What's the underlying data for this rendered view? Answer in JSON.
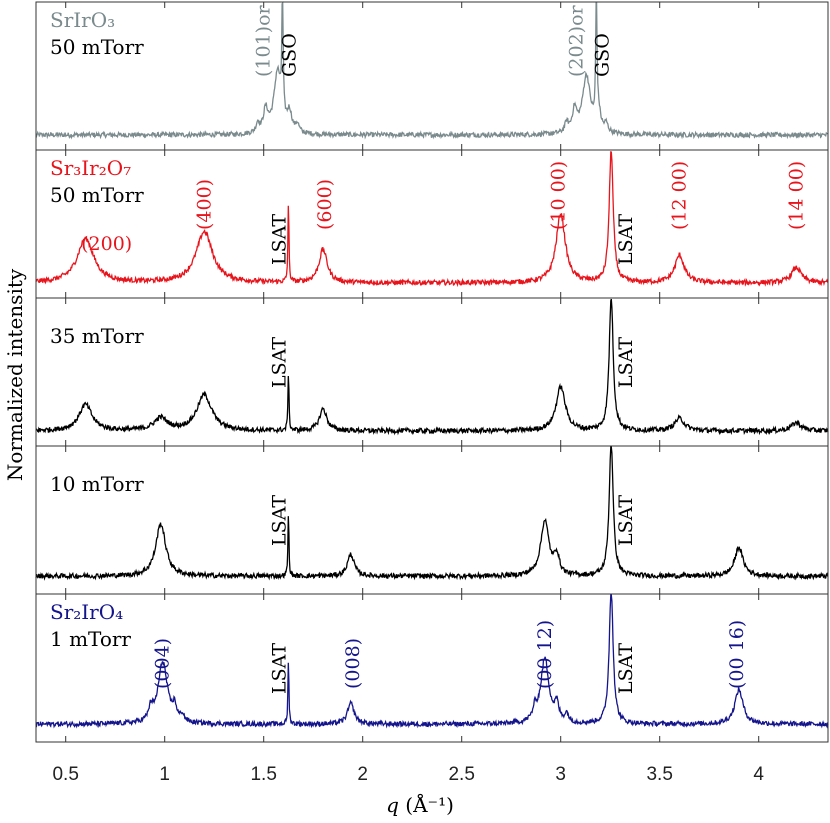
{
  "chart_data": {
    "type": "line",
    "title": "",
    "xlabel": "q (Å⁻¹)",
    "xlabel_var": "q",
    "xlabel_unit": "(Å⁻¹)",
    "ylabel": "Normalized intensity",
    "xlim": [
      0.35,
      4.35
    ],
    "x_ticks": [
      "0.5",
      "1",
      "1.5",
      "2",
      "2.5",
      "3",
      "3.5",
      "4"
    ],
    "x_tick_values": [
      0.5,
      1,
      1.5,
      2,
      2.5,
      3,
      3.5,
      4
    ],
    "panels": [
      {
        "material": "SrIrO₃",
        "pressure": "50 mTorr",
        "color": "#7a8a8d",
        "baseline": 0.08,
        "peaks": [
          {
            "x": 1.57,
            "h": 0.45,
            "w": 0.022
          },
          {
            "x": 1.51,
            "h": 0.16,
            "w": 0.014
          },
          {
            "x": 1.63,
            "h": 0.14,
            "w": 0.014
          },
          {
            "x": 1.47,
            "h": 0.07,
            "w": 0.01
          },
          {
            "x": 1.67,
            "h": 0.06,
            "w": 0.01
          },
          {
            "x": 1.595,
            "h": 0.98,
            "w": 0.0035
          },
          {
            "x": 3.13,
            "h": 0.42,
            "w": 0.024
          },
          {
            "x": 3.07,
            "h": 0.16,
            "w": 0.014
          },
          {
            "x": 3.19,
            "h": 0.14,
            "w": 0.014
          },
          {
            "x": 3.03,
            "h": 0.07,
            "w": 0.01
          },
          {
            "x": 3.23,
            "h": 0.06,
            "w": 0.01
          },
          {
            "x": 3.18,
            "h": 0.98,
            "w": 0.0035
          }
        ],
        "annotations": [
          {
            "text": "(101)",
            "suffix": "or",
            "x": 1.5,
            "color": "#7a8a8d"
          },
          {
            "text": "GSO",
            "x": 1.63,
            "color": "#000000"
          },
          {
            "text": "(202)",
            "suffix": "or",
            "x": 3.08,
            "color": "#7a8a8d"
          },
          {
            "text": "GSO",
            "x": 3.21,
            "color": "#000000"
          }
        ]
      },
      {
        "material": "Sr₃Ir₂O₇",
        "pressure": "50 mTorr",
        "color": "#e8141c",
        "baseline": 0.08,
        "peaks": [
          {
            "x": 0.6,
            "h": 0.32,
            "w": 0.05
          },
          {
            "x": 1.2,
            "h": 0.37,
            "w": 0.05
          },
          {
            "x": 1.8,
            "h": 0.24,
            "w": 0.025
          },
          {
            "x": 3.0,
            "h": 0.5,
            "w": 0.028
          },
          {
            "x": 3.6,
            "h": 0.2,
            "w": 0.028
          },
          {
            "x": 4.19,
            "h": 0.11,
            "w": 0.03
          },
          {
            "x": 1.625,
            "h": 0.58,
            "w": 0.003
          },
          {
            "x": 3.255,
            "h": 0.96,
            "w": 0.012
          }
        ],
        "annotations": [
          {
            "text": "(200)",
            "x": 0.78,
            "color": "#e8141c",
            "horizontal": true
          },
          {
            "text": "(400)",
            "x": 1.2,
            "color": "#e8141c"
          },
          {
            "text": "LSAT",
            "x": 1.58,
            "color": "#000000"
          },
          {
            "text": "(600)",
            "x": 1.81,
            "color": "#e8141c"
          },
          {
            "text": "(10 00)",
            "x": 2.99,
            "color": "#e8141c"
          },
          {
            "text": "LSAT",
            "x": 3.33,
            "color": "#000000"
          },
          {
            "text": "(12 00)",
            "x": 3.6,
            "color": "#e8141c"
          },
          {
            "text": "(14 00)",
            "x": 4.19,
            "color": "#e8141c"
          }
        ]
      },
      {
        "material": "",
        "pressure": "35 mTorr",
        "color": "#000000",
        "baseline": 0.08,
        "peaks": [
          {
            "x": 0.6,
            "h": 0.19,
            "w": 0.04
          },
          {
            "x": 0.98,
            "h": 0.09,
            "w": 0.04
          },
          {
            "x": 1.2,
            "h": 0.26,
            "w": 0.045
          },
          {
            "x": 1.8,
            "h": 0.16,
            "w": 0.022
          },
          {
            "x": 3.0,
            "h": 0.32,
            "w": 0.028
          },
          {
            "x": 3.6,
            "h": 0.09,
            "w": 0.03
          },
          {
            "x": 4.19,
            "h": 0.06,
            "w": 0.03
          },
          {
            "x": 1.625,
            "h": 0.43,
            "w": 0.003
          },
          {
            "x": 3.255,
            "h": 0.98,
            "w": 0.012
          }
        ],
        "annotations": [
          {
            "text": "LSAT",
            "x": 1.58,
            "color": "#000000"
          },
          {
            "text": "LSAT",
            "x": 3.33,
            "color": "#000000"
          }
        ]
      },
      {
        "material": "",
        "pressure": "10 mTorr",
        "color": "#000000",
        "baseline": 0.1,
        "peaks": [
          {
            "x": 0.98,
            "h": 0.38,
            "w": 0.03
          },
          {
            "x": 1.94,
            "h": 0.16,
            "w": 0.02
          },
          {
            "x": 2.92,
            "h": 0.4,
            "w": 0.025
          },
          {
            "x": 2.98,
            "h": 0.14,
            "w": 0.015
          },
          {
            "x": 3.9,
            "h": 0.21,
            "w": 0.025
          },
          {
            "x": 1.625,
            "h": 0.45,
            "w": 0.003
          },
          {
            "x": 3.255,
            "h": 0.98,
            "w": 0.012
          }
        ],
        "annotations": [
          {
            "text": "LSAT",
            "x": 1.58,
            "color": "#000000"
          },
          {
            "text": "LSAT",
            "x": 3.33,
            "color": "#000000"
          }
        ]
      },
      {
        "material": "Sr₂IrO₄",
        "pressure": "1 mTorr",
        "color": "#14148c",
        "baseline": 0.1,
        "peaks": [
          {
            "x": 0.99,
            "h": 0.45,
            "w": 0.028
          },
          {
            "x": 0.93,
            "h": 0.09,
            "w": 0.012
          },
          {
            "x": 1.05,
            "h": 0.1,
            "w": 0.012
          },
          {
            "x": 1.09,
            "h": 0.05,
            "w": 0.01
          },
          {
            "x": 1.94,
            "h": 0.15,
            "w": 0.02
          },
          {
            "x": 2.92,
            "h": 0.47,
            "w": 0.025
          },
          {
            "x": 2.87,
            "h": 0.08,
            "w": 0.012
          },
          {
            "x": 2.98,
            "h": 0.12,
            "w": 0.012
          },
          {
            "x": 3.03,
            "h": 0.06,
            "w": 0.012
          },
          {
            "x": 3.9,
            "h": 0.25,
            "w": 0.025
          },
          {
            "x": 1.625,
            "h": 0.46,
            "w": 0.003
          },
          {
            "x": 3.255,
            "h": 0.98,
            "w": 0.012
          }
        ],
        "annotations": [
          {
            "text": "(004)",
            "x": 0.99,
            "color": "#14148c"
          },
          {
            "text": "LSAT",
            "x": 1.58,
            "color": "#000000"
          },
          {
            "text": "(008)",
            "x": 1.95,
            "color": "#14148c"
          },
          {
            "text": "(00 12)",
            "x": 2.92,
            "color": "#14148c"
          },
          {
            "text": "LSAT",
            "x": 3.33,
            "color": "#000000"
          },
          {
            "text": "(00 16)",
            "x": 3.89,
            "color": "#14148c"
          }
        ]
      }
    ]
  }
}
